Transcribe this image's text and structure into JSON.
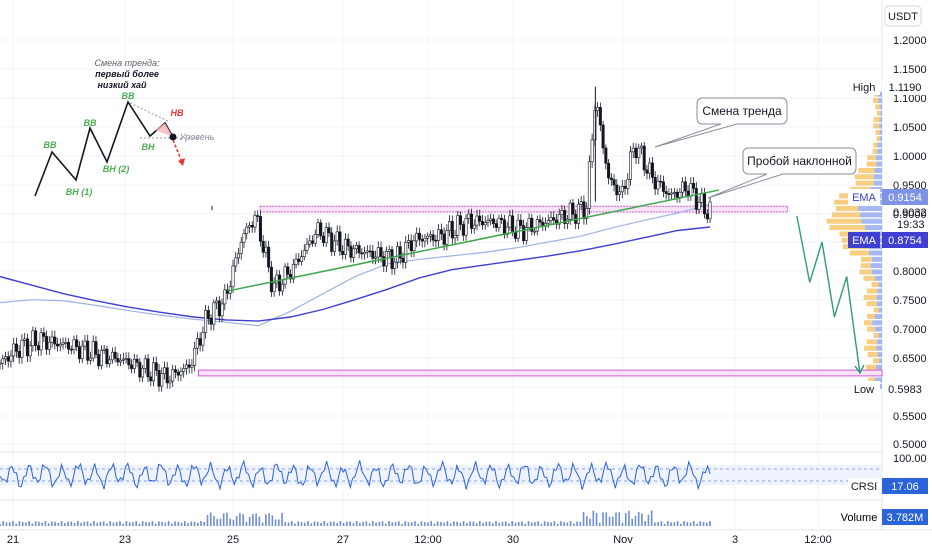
{
  "chart_data": {
    "type": "candlestick",
    "currency": "USDT",
    "y_ticks": [
      "1.2000",
      "1.1500",
      "1.1000",
      "1.0500",
      "1.0000",
      "0.9500",
      "0.9000",
      "0.8500",
      "0.8000",
      "0.7500",
      "0.7000",
      "0.6500",
      "0.6000",
      "0.5500",
      "0.5000"
    ],
    "ylim": [
      0.47,
      1.23
    ],
    "x_ticks": [
      "21",
      "23",
      "25",
      "27",
      "12:00",
      "30",
      "Nov",
      "3",
      "12:00"
    ],
    "high_label": "High",
    "high_value": "1.1190",
    "low_label": "Low",
    "low_value": "0.5983",
    "ema_label": "EMA",
    "ema_fast_value": "0.9154",
    "ema_slow_value": "0.8754",
    "last_price": "0.9032",
    "countdown": "19:33",
    "support_zone": [
      0.618,
      0.628
    ],
    "resistance_zone": [
      0.902,
      0.912
    ],
    "trendline": {
      "from": [
        0.258,
        0.765
      ],
      "to": [
        0.815,
        0.94
      ]
    },
    "ema_slow_curve": [
      0.79,
      0.775,
      0.76,
      0.748,
      0.737,
      0.728,
      0.72,
      0.715,
      0.713,
      0.72,
      0.733,
      0.75,
      0.768,
      0.788,
      0.802,
      0.81,
      0.818,
      0.826,
      0.835,
      0.846,
      0.858,
      0.87,
      0.876
    ],
    "ema_fast_curve": [
      0.745,
      0.75,
      0.748,
      0.74,
      0.731,
      0.723,
      0.716,
      0.711,
      0.705,
      0.73,
      0.76,
      0.79,
      0.812,
      0.82,
      0.826,
      0.832,
      0.84,
      0.85,
      0.86,
      0.875,
      0.888,
      0.9,
      0.915
    ],
    "projection_path": [
      [
        0.9035,
        0.895
      ],
      [
        0.918,
        0.78
      ],
      [
        0.932,
        0.85
      ],
      [
        0.946,
        0.72
      ],
      [
        0.96,
        0.79
      ],
      [
        0.975,
        0.623
      ]
    ],
    "callouts": [
      {
        "text": "Смена тренда"
      },
      {
        "text": "Пробой наклонной"
      }
    ],
    "inset": {
      "title_line1": "Смена тренда:",
      "title_line2": "первый более",
      "title_line3": "низкий хай",
      "labels": [
        "BB",
        "BB",
        "BB",
        "BH (1)",
        "BH (2)",
        "BH",
        "HB",
        "Уровень"
      ]
    },
    "crsi": {
      "name": "CRSI",
      "value": "17.06",
      "scale_top": "100.00"
    },
    "volume": {
      "name": "Volume",
      "value": "3.782M"
    }
  },
  "colors": {
    "up": "#131722",
    "down": "#131722",
    "ema_slow": "#3f3fd1",
    "ema_fast": "#9db3e6",
    "trend": "#3aa84a",
    "projection": "#2e9d7a",
    "zone": "#d35bd3",
    "profile_up": "#f7c56b",
    "profile_down": "#8ea6f0",
    "crsi": "#2b63d9",
    "red": "#e53935"
  }
}
